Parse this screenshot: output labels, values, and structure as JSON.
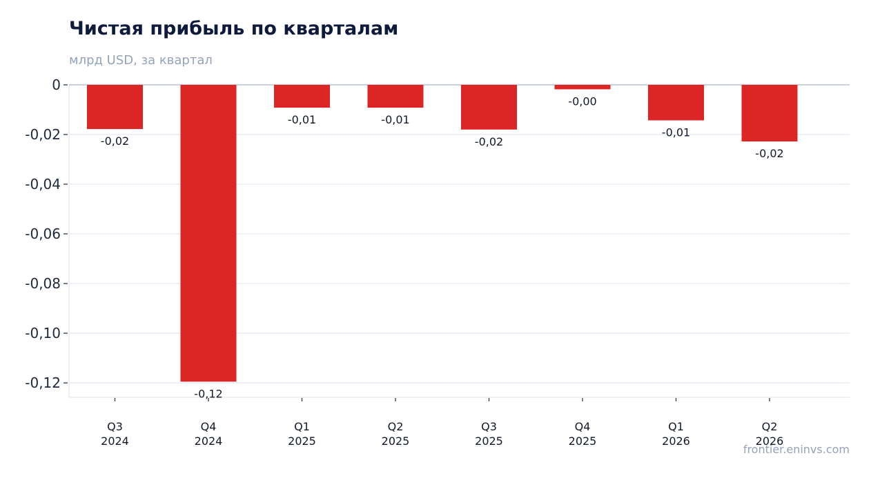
{
  "header": {
    "title": "Чистая прибыль по кварталам",
    "subtitle": "млрд USD, за квартал"
  },
  "footer": {
    "source": "frontier.eninvs.com"
  },
  "colors": {
    "bar": "#dc2626",
    "grid": "#e2e8f0",
    "zero_line": "#94a3b8",
    "tick_text": "#1e293b",
    "label_text": "#111827"
  },
  "chart_data": {
    "type": "bar",
    "title": "Чистая прибыль по кварталам",
    "subtitle": "млрд USD, за квартал",
    "categories": [
      [
        "Q3",
        "2024"
      ],
      [
        "Q4",
        "2024"
      ],
      [
        "Q1",
        "2025"
      ],
      [
        "Q2",
        "2025"
      ],
      [
        "Q3",
        "2025"
      ],
      [
        "Q4",
        "2025"
      ],
      [
        "Q1",
        "2026"
      ],
      [
        "Q2",
        "2026"
      ]
    ],
    "values": [
      -0.0178,
      -0.1195,
      -0.0092,
      -0.0092,
      -0.018,
      -0.0018,
      -0.0143,
      -0.0228
    ],
    "data_labels": [
      "-0,02",
      "-0,12",
      "-0,01",
      "-0,01",
      "-0,02",
      "-0,00",
      "-0,01",
      "-0,02"
    ],
    "y_ticks": [
      0,
      -0.02,
      -0.04,
      -0.06,
      -0.08,
      -0.1,
      -0.12
    ],
    "y_tick_labels": [
      "0",
      "-0,02",
      "-0,04",
      "-0,06",
      "-0,08",
      "-0,10",
      "-0,12"
    ],
    "ylim": [
      -0.1258,
      0
    ],
    "grid": true,
    "legend": false
  }
}
